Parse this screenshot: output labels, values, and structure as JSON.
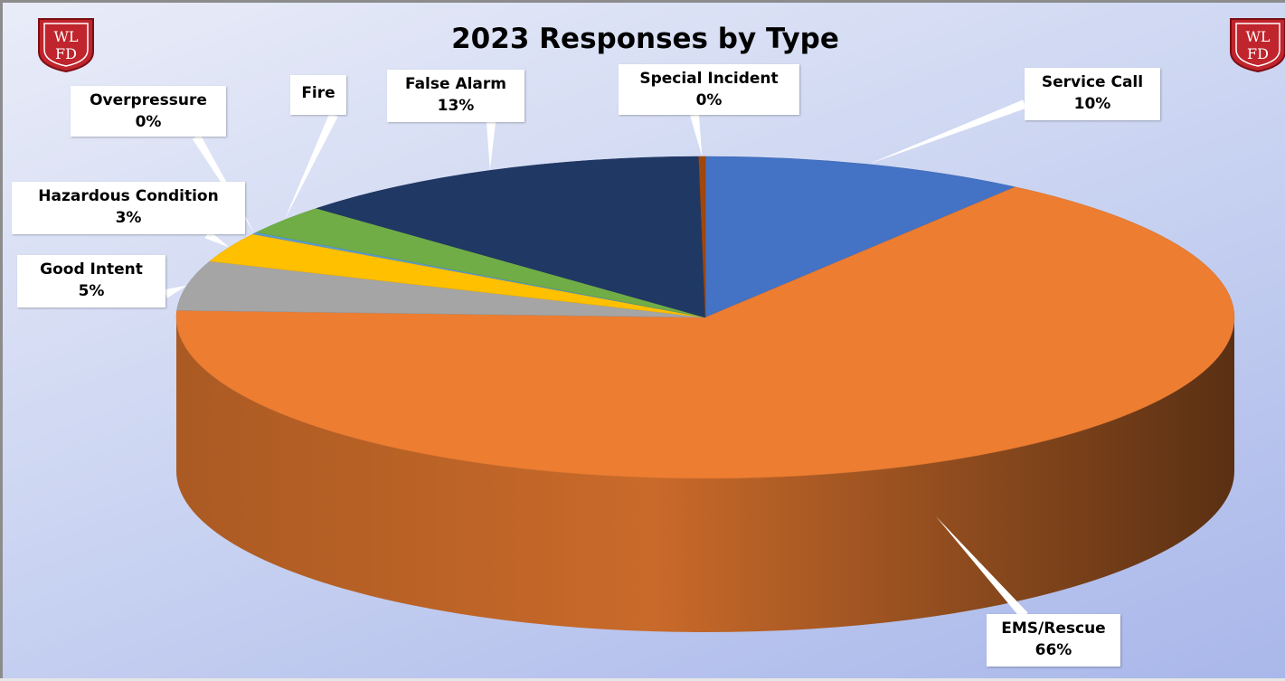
{
  "colors": {
    "bg_start": "#e9ecf8",
    "bg_end": "#a9b7ea",
    "logo_red": "#c0242c"
  },
  "logos": {
    "left": {
      "icon": "wlfd-shield-logo",
      "text": "WLFD"
    },
    "right": {
      "icon": "wlfd-shield-logo",
      "text": "WLFD"
    }
  },
  "chart_data": {
    "type": "pie",
    "title": "2023 Responses by Type",
    "style": "3d-pie",
    "slices": [
      {
        "label": "Service Call",
        "percent_label": "10%",
        "value": 10,
        "color": "#4472c4"
      },
      {
        "label": "EMS/Rescue",
        "percent_label": "66%",
        "value": 66,
        "color": "#ed7d31"
      },
      {
        "label": "Good Intent",
        "percent_label": "5%",
        "value": 5,
        "color": "#a5a5a5"
      },
      {
        "label": "Hazardous Condition",
        "percent_label": "3%",
        "value": 3,
        "color": "#ffc000"
      },
      {
        "label": "Overpressure",
        "percent_label": "0%",
        "value": 0.2,
        "color": "#5b9bd5"
      },
      {
        "label": "Fire",
        "percent_label": "",
        "value": 3,
        "color": "#70ad47"
      },
      {
        "label": "False Alarm",
        "percent_label": "13%",
        "value": 13,
        "color": "#203864"
      },
      {
        "label": "Special Incident",
        "percent_label": "0%",
        "value": 0.2,
        "color": "#9e480e"
      }
    ]
  }
}
